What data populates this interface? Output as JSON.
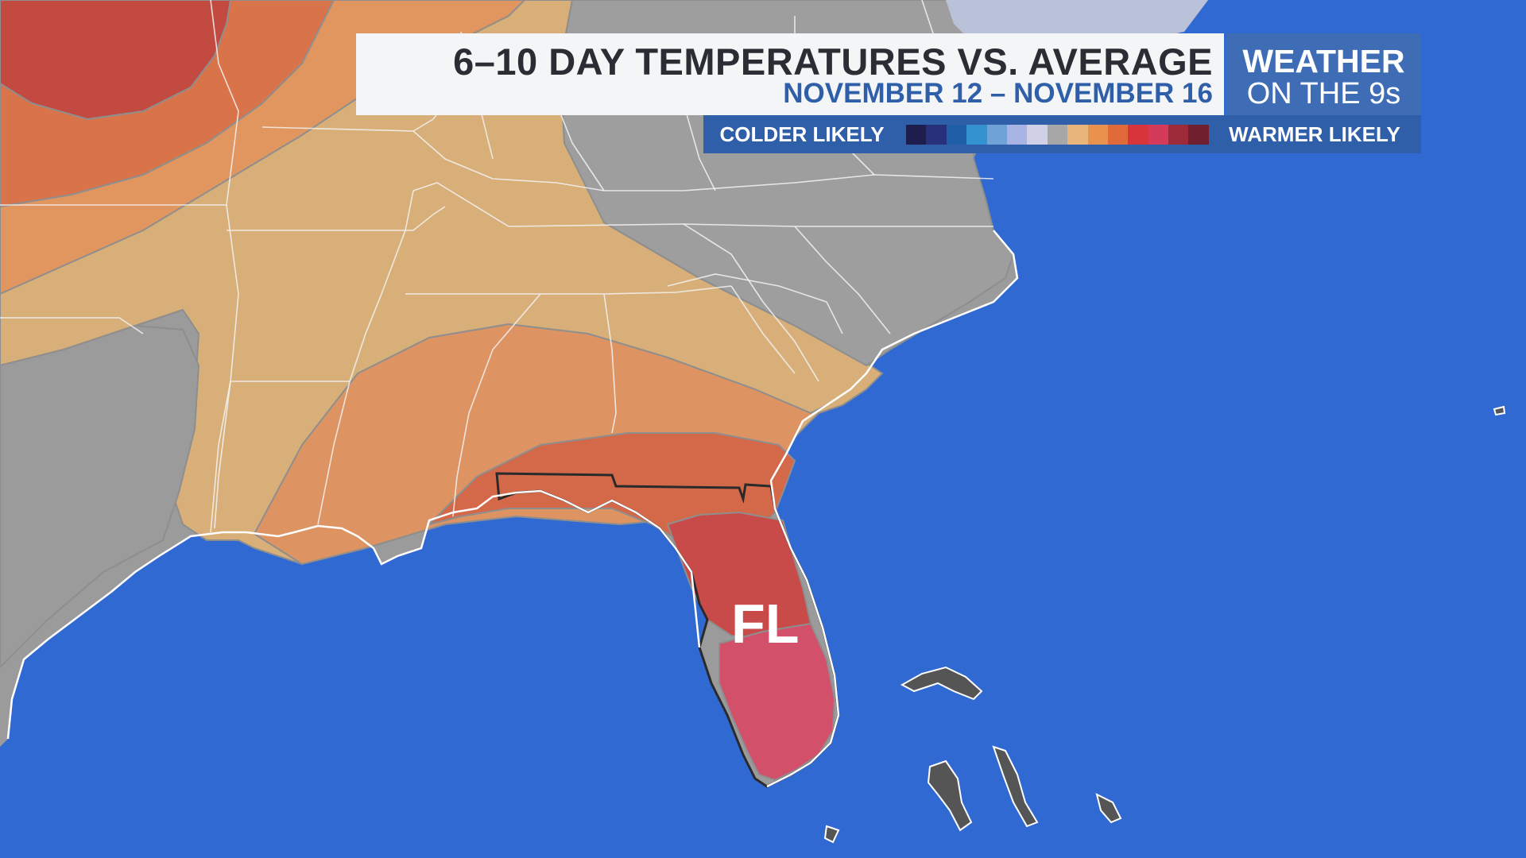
{
  "header": {
    "title": "6–10 DAY TEMPERATURES VS. AVERAGE",
    "subtitle": "NOVEMBER 12 – NOVEMBER 16"
  },
  "brand": {
    "line1": "WEATHER",
    "line2": "ON THE 9s"
  },
  "legend": {
    "left_label": "COLDER LIKELY",
    "right_label": "WARMER LIKELY",
    "colors": [
      "#1D1D4E",
      "#27307A",
      "#1F5FA8",
      "#3592D0",
      "#6FA3D8",
      "#A9B4E4",
      "#D0D0E6",
      "#A7A7A7",
      "#E8B57A",
      "#E8924E",
      "#E06A3A",
      "#D8343C",
      "#D53A5A",
      "#9C2A39",
      "#6F1F2E"
    ]
  },
  "map": {
    "state_label": "FL",
    "colors": {
      "ocean": "#3169D3",
      "near_normal": "#9B9B9B",
      "warm_light": "#D8AF78",
      "warm_medium": "#DD9462",
      "warm_strong": "#D4694A",
      "warm_stronger": "#C94B49",
      "warm_strongest": "#D3506B",
      "far_north_warm": "#C24A40"
    }
  }
}
